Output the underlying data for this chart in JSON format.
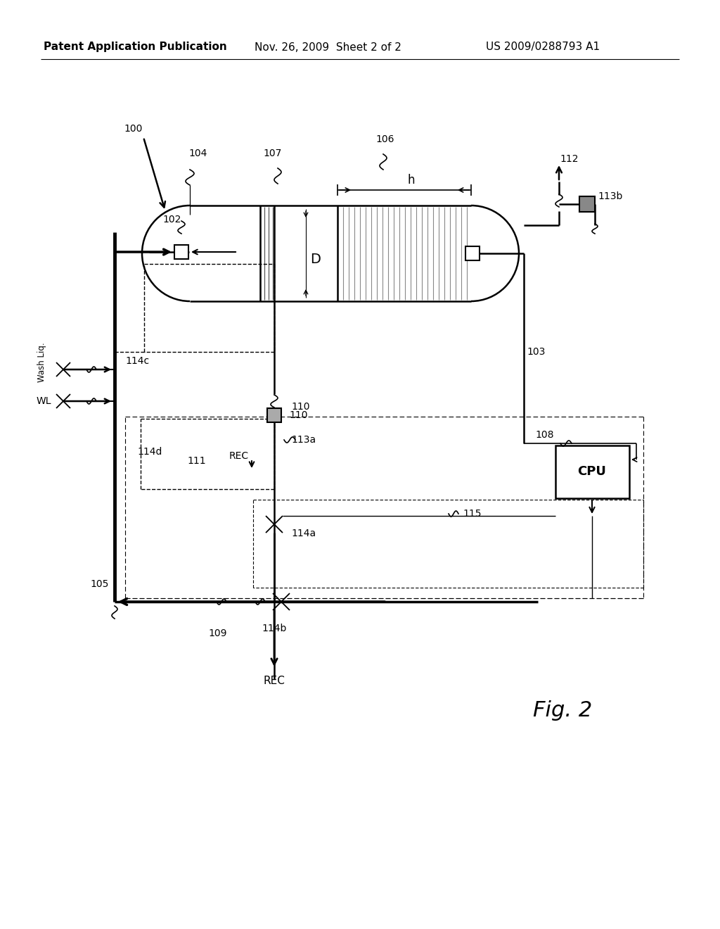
{
  "bg_color": "#ffffff",
  "header_left": "Patent Application Publication",
  "header_mid": "Nov. 26, 2009  Sheet 2 of 2",
  "header_right": "US 2009/0288793 A1",
  "fig_label": "Fig. 2",
  "lfs": 10,
  "hfs": 11
}
